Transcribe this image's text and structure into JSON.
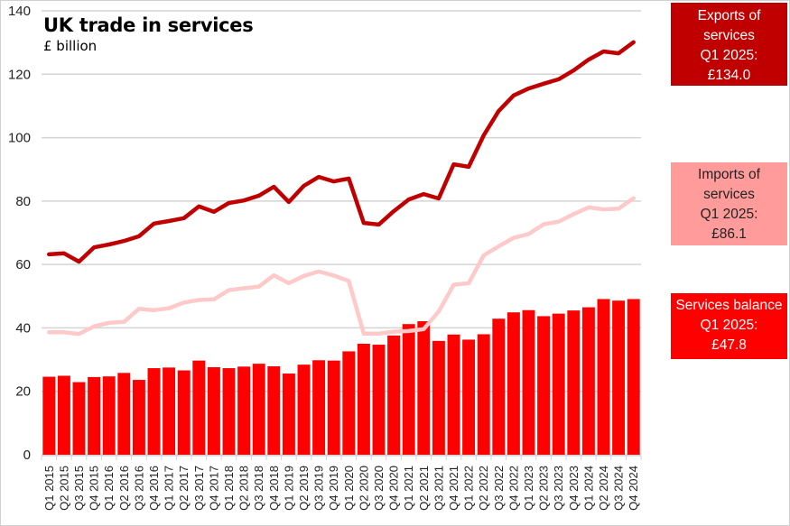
{
  "chart_data": {
    "type": "bar",
    "title": "UK trade in services",
    "subtitle": "£ billion",
    "xlabel": "",
    "ylabel": "£ billion",
    "ylim": [
      0,
      140
    ],
    "yticks": [
      0,
      20,
      40,
      60,
      80,
      100,
      120,
      140
    ],
    "grid": true,
    "categories": [
      "Q1 2015",
      "Q2 2015",
      "Q3 2015",
      "Q4 2015",
      "Q1 2016",
      "Q2 2016",
      "Q3 2016",
      "Q4 2016",
      "Q1 2017",
      "Q2 2017",
      "Q3 2017",
      "Q4 2017",
      "Q1 2018",
      "Q2 2018",
      "Q3 2018",
      "Q4 2018",
      "Q1 2019",
      "Q2 2019",
      "Q3 2019",
      "Q4 2019",
      "Q1 2020",
      "Q2 2020",
      "Q3 2020",
      "Q4 2020",
      "Q1 2021",
      "Q2 2021",
      "Q3 2021",
      "Q4 2021",
      "Q1 2022",
      "Q2 2022",
      "Q3 2022",
      "Q4 2022",
      "Q1 2023",
      "Q2 2023",
      "Q3 2023",
      "Q4 2023",
      "Q1 2024",
      "Q2 2024",
      "Q3 2024",
      "Q4 2024"
    ],
    "series": [
      {
        "name": "Services balance",
        "type": "bar",
        "color": "#ff0000",
        "values": [
          24.6,
          24.9,
          22.9,
          24.5,
          24.7,
          25.8,
          23.6,
          27.3,
          27.5,
          26.6,
          29.7,
          27.6,
          27.3,
          27.8,
          28.7,
          27.9,
          25.6,
          28.4,
          29.8,
          29.7,
          32.6,
          35.0,
          34.7,
          37.6,
          41.2,
          42.1,
          35.9,
          37.9,
          36.3,
          38.0,
          42.9,
          44.9,
          45.6,
          43.7,
          44.5,
          45.5,
          46.5,
          49.1,
          48.6,
          49.1
        ]
      },
      {
        "name": "Imports of services",
        "type": "line",
        "color": "#ffc9c9",
        "values": [
          38.6,
          38.6,
          38.1,
          40.5,
          41.6,
          41.9,
          46.0,
          45.6,
          46.2,
          48.0,
          48.8,
          49.0,
          51.9,
          52.5,
          53.0,
          56.6,
          54.1,
          56.4,
          57.8,
          56.5,
          54.8,
          38.2,
          38.2,
          38.8,
          39.0,
          39.6,
          45.2,
          53.6,
          54.1,
          62.9,
          65.7,
          68.4,
          69.6,
          72.7,
          73.5,
          75.9,
          78.0,
          77.4,
          77.6,
          80.9
        ]
      },
      {
        "name": "Exports of services",
        "type": "line",
        "color": "#c00000",
        "values": [
          63.2,
          63.5,
          60.9,
          65.4,
          66.3,
          67.4,
          68.9,
          72.9,
          73.7,
          74.6,
          78.3,
          76.6,
          79.4,
          80.2,
          81.7,
          84.5,
          79.7,
          84.8,
          87.6,
          86.2,
          87.1,
          73.1,
          72.6,
          76.8,
          80.5,
          82.2,
          80.8,
          91.6,
          90.8,
          100.7,
          108.4,
          113.3,
          115.5,
          117.0,
          118.4,
          121.2,
          124.6,
          127.2,
          126.6,
          130.1
        ]
      }
    ],
    "annotations": [
      {
        "id": "exports",
        "lines": [
          "Exports of",
          "services",
          "Q1 2025:",
          "£134.0"
        ],
        "color": "#c00000"
      },
      {
        "id": "imports",
        "lines": [
          "Imports of",
          "services",
          "Q1 2025:",
          "£86.1"
        ],
        "color": "#ff9b9b"
      },
      {
        "id": "balance",
        "lines": [
          "Services balance",
          "Q1 2025:",
          "£47.8"
        ],
        "color": "#ff0000"
      }
    ]
  }
}
